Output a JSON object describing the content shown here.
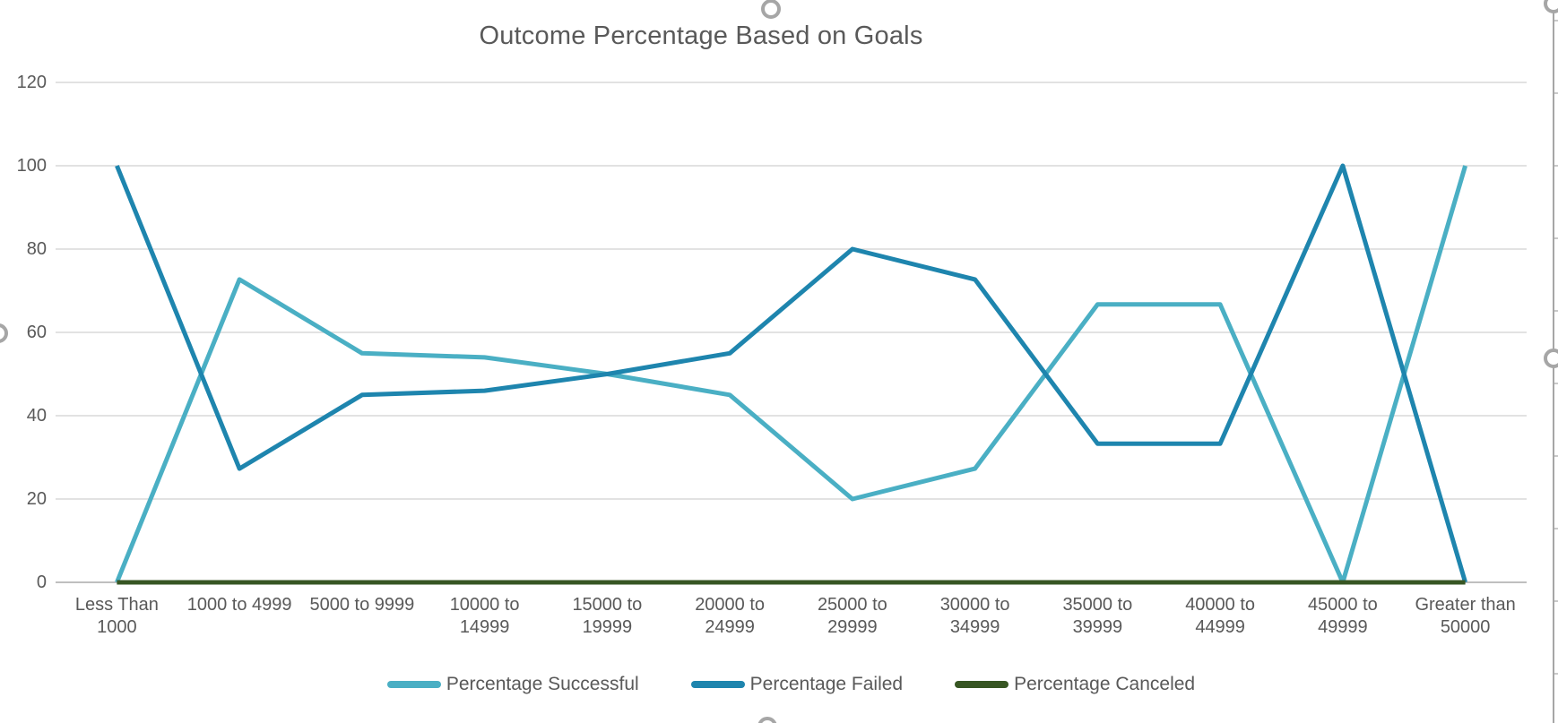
{
  "chart_data": {
    "type": "line",
    "title": "Outcome Percentage Based on Goals",
    "categories": [
      "Less Than 1000",
      "1000 to 4999",
      "5000 to 9999",
      "10000 to 14999",
      "15000 to 19999",
      "20000 to 24999",
      "25000 to 29999",
      "30000 to 34999",
      "35000 to 39999",
      "40000 to 44999",
      "45000 to 49999",
      "Greater than 50000"
    ],
    "categories_display": [
      [
        "Less Than",
        "1000"
      ],
      [
        "1000 to 4999"
      ],
      [
        "5000 to 9999"
      ],
      [
        "10000 to",
        "14999"
      ],
      [
        "15000 to",
        "19999"
      ],
      [
        "20000 to",
        "24999"
      ],
      [
        "25000 to",
        "29999"
      ],
      [
        "30000 to",
        "34999"
      ],
      [
        "35000 to",
        "39999"
      ],
      [
        "40000 to",
        "44999"
      ],
      [
        "45000 to",
        "49999"
      ],
      [
        "Greater than",
        "50000"
      ]
    ],
    "series": [
      {
        "name": "Percentage Successful",
        "color": "#4AAFC4",
        "values": [
          0,
          72.7,
          55,
          54,
          50,
          45,
          20,
          27.3,
          66.7,
          66.7,
          0,
          100
        ]
      },
      {
        "name": "Percentage Failed",
        "color": "#1E85AE",
        "values": [
          100,
          27.3,
          45,
          46,
          50,
          55,
          80,
          72.7,
          33.3,
          33.3,
          100,
          0
        ]
      },
      {
        "name": "Percentage Canceled",
        "color": "#375623",
        "values": [
          0,
          0,
          0,
          0,
          0,
          0,
          0,
          0,
          0,
          0,
          0,
          0
        ]
      }
    ],
    "y_ticks": [
      0,
      20,
      40,
      60,
      80,
      100,
      120
    ],
    "ylim": [
      0,
      120
    ],
    "xlabel": "",
    "ylabel": "",
    "grid": true,
    "legend_position": "bottom"
  },
  "colors": {
    "gridline": "#D9D9D9",
    "axis_line": "#BFBFBF",
    "text": "#595959",
    "selection_handle": "#A6A6A6",
    "background": "#FFFFFF"
  }
}
